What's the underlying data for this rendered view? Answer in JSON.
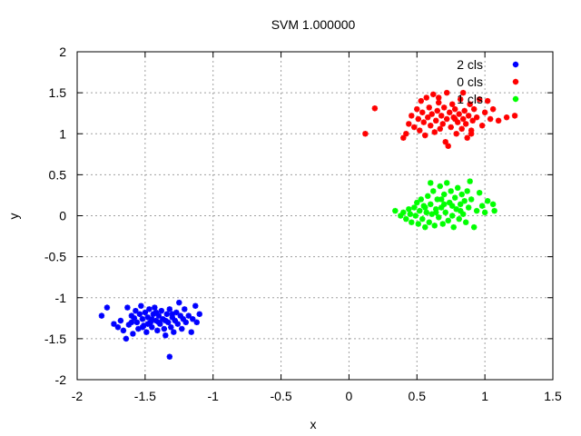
{
  "chart_data": {
    "type": "scatter",
    "title": "SVM 1.000000",
    "xlabel": "x",
    "ylabel": "y",
    "xlim": [
      -2,
      1.5
    ],
    "ylim": [
      -2,
      2
    ],
    "x_ticks": [
      "-2",
      "-1.5",
      "-1",
      "-0.5",
      "0",
      "0.5",
      "1",
      "1.5"
    ],
    "y_ticks": [
      "-2",
      "-1.5",
      "-1",
      "-0.5",
      "0",
      "0.5",
      "1",
      "1.5",
      "2"
    ],
    "grid": true,
    "legend_position": "top-right",
    "series": [
      {
        "name": "2 cls",
        "color": "#0000ff",
        "points": [
          [
            -1.82,
            -1.22
          ],
          [
            -1.78,
            -1.12
          ],
          [
            -1.73,
            -1.32
          ],
          [
            -1.7,
            -1.36
          ],
          [
            -1.68,
            -1.28
          ],
          [
            -1.66,
            -1.4
          ],
          [
            -1.64,
            -1.5
          ],
          [
            -1.63,
            -1.12
          ],
          [
            -1.62,
            -1.33
          ],
          [
            -1.6,
            -1.22
          ],
          [
            -1.59,
            -1.44
          ],
          [
            -1.58,
            -1.25
          ],
          [
            -1.57,
            -1.16
          ],
          [
            -1.56,
            -1.3
          ],
          [
            -1.55,
            -1.38
          ],
          [
            -1.54,
            -1.2
          ],
          [
            -1.53,
            -1.1
          ],
          [
            -1.52,
            -1.26
          ],
          [
            -1.51,
            -1.34
          ],
          [
            -1.5,
            -1.18
          ],
          [
            -1.49,
            -1.42
          ],
          [
            -1.48,
            -1.24
          ],
          [
            -1.47,
            -1.14
          ],
          [
            -1.46,
            -1.3
          ],
          [
            -1.45,
            -1.36
          ],
          [
            -1.44,
            -1.2
          ],
          [
            -1.43,
            -1.12
          ],
          [
            -1.42,
            -1.28
          ],
          [
            -1.41,
            -1.4
          ],
          [
            -1.4,
            -1.22
          ],
          [
            -1.39,
            -1.32
          ],
          [
            -1.38,
            -1.16
          ],
          [
            -1.37,
            -1.26
          ],
          [
            -1.36,
            -1.38
          ],
          [
            -1.35,
            -1.46
          ],
          [
            -1.34,
            -1.2
          ],
          [
            -1.33,
            -1.3
          ],
          [
            -1.32,
            -1.14
          ],
          [
            -1.31,
            -1.36
          ],
          [
            -1.3,
            -1.24
          ],
          [
            -1.29,
            -1.42
          ],
          [
            -1.28,
            -1.28
          ],
          [
            -1.27,
            -1.18
          ],
          [
            -1.26,
            -1.32
          ],
          [
            -1.25,
            -1.06
          ],
          [
            -1.24,
            -1.22
          ],
          [
            -1.23,
            -1.38
          ],
          [
            -1.22,
            -1.26
          ],
          [
            -1.21,
            -1.14
          ],
          [
            -1.2,
            -1.3
          ],
          [
            -1.18,
            -1.22
          ],
          [
            -1.16,
            -1.42
          ],
          [
            -1.15,
            -1.26
          ],
          [
            -1.13,
            -1.1
          ],
          [
            -1.12,
            -1.3
          ],
          [
            -1.1,
            -1.2
          ],
          [
            -1.32,
            -1.72
          ],
          [
            -1.45,
            -1.26
          ],
          [
            -1.52,
            -1.36
          ],
          [
            -1.4,
            -1.3
          ],
          [
            -1.6,
            -1.3
          ],
          [
            -1.48,
            -1.32
          ],
          [
            -1.35,
            -1.28
          ],
          [
            -1.42,
            -1.18
          ],
          [
            -1.3,
            -1.2
          ]
        ]
      },
      {
        "name": "0 cls",
        "color": "#ff0000",
        "points": [
          [
            0.12,
            1.0
          ],
          [
            0.19,
            1.31
          ],
          [
            0.4,
            0.95
          ],
          [
            0.42,
            1.0
          ],
          [
            0.44,
            1.12
          ],
          [
            0.46,
            1.22
          ],
          [
            0.48,
            1.08
          ],
          [
            0.5,
            1.3
          ],
          [
            0.51,
            1.18
          ],
          [
            0.52,
            1.04
          ],
          [
            0.53,
            1.4
          ],
          [
            0.54,
            1.26
          ],
          [
            0.55,
            1.14
          ],
          [
            0.56,
            0.98
          ],
          [
            0.57,
            1.44
          ],
          [
            0.58,
            1.2
          ],
          [
            0.59,
            1.32
          ],
          [
            0.6,
            1.1
          ],
          [
            0.61,
            1.24
          ],
          [
            0.62,
            1.48
          ],
          [
            0.63,
            1.02
          ],
          [
            0.64,
            1.16
          ],
          [
            0.65,
            1.28
          ],
          [
            0.66,
            1.38
          ],
          [
            0.67,
            1.06
          ],
          [
            0.68,
            1.22
          ],
          [
            0.69,
            1.12
          ],
          [
            0.7,
            1.32
          ],
          [
            0.71,
            0.9
          ],
          [
            0.72,
            1.18
          ],
          [
            0.73,
            0.85
          ],
          [
            0.74,
            1.26
          ],
          [
            0.75,
            1.08
          ],
          [
            0.76,
            1.36
          ],
          [
            0.77,
            1.2
          ],
          [
            0.78,
            1.3
          ],
          [
            0.79,
            1.0
          ],
          [
            0.8,
            1.14
          ],
          [
            0.81,
            1.24
          ],
          [
            0.82,
            1.42
          ],
          [
            0.83,
            1.06
          ],
          [
            0.84,
            1.18
          ],
          [
            0.85,
            1.28
          ],
          [
            0.86,
            1.12
          ],
          [
            0.87,
            0.95
          ],
          [
            0.88,
            1.22
          ],
          [
            0.89,
            1.36
          ],
          [
            0.9,
            1.04
          ],
          [
            0.91,
            1.16
          ],
          [
            0.92,
            1.3
          ],
          [
            0.94,
            1.2
          ],
          [
            0.96,
            1.42
          ],
          [
            0.98,
            1.1
          ],
          [
            1.0,
            1.26
          ],
          [
            1.02,
            1.4
          ],
          [
            1.04,
            1.18
          ],
          [
            1.06,
            1.3
          ],
          [
            1.1,
            1.16
          ],
          [
            1.16,
            1.2
          ],
          [
            1.22,
            1.22
          ],
          [
            0.66,
            1.44
          ],
          [
            0.72,
            1.5
          ],
          [
            0.84,
            1.5
          ],
          [
            0.9,
            1.0
          ],
          [
            0.78,
            1.18
          ]
        ]
      },
      {
        "name": "1 cls",
        "color": "#00ff00",
        "points": [
          [
            0.34,
            0.06
          ],
          [
            0.38,
            0.0
          ],
          [
            0.4,
            0.04
          ],
          [
            0.42,
            -0.04
          ],
          [
            0.44,
            0.08
          ],
          [
            0.45,
            0.02
          ],
          [
            0.46,
            -0.08
          ],
          [
            0.48,
            0.1
          ],
          [
            0.49,
            0.0
          ],
          [
            0.5,
            0.16
          ],
          [
            0.51,
            -0.1
          ],
          [
            0.52,
            0.06
          ],
          [
            0.53,
            0.2
          ],
          [
            0.54,
            -0.04
          ],
          [
            0.55,
            0.12
          ],
          [
            0.56,
            -0.14
          ],
          [
            0.57,
            0.04
          ],
          [
            0.58,
            0.24
          ],
          [
            0.59,
            -0.08
          ],
          [
            0.6,
            0.14
          ],
          [
            0.61,
            0.02
          ],
          [
            0.62,
            0.3
          ],
          [
            0.63,
            -0.12
          ],
          [
            0.64,
            0.08
          ],
          [
            0.65,
            0.2
          ],
          [
            0.66,
            -0.02
          ],
          [
            0.67,
            0.36
          ],
          [
            0.68,
            0.1
          ],
          [
            0.69,
            -0.1
          ],
          [
            0.7,
            0.26
          ],
          [
            0.71,
            0.04
          ],
          [
            0.72,
            0.4
          ],
          [
            0.73,
            -0.06
          ],
          [
            0.74,
            0.16
          ],
          [
            0.75,
            0.3
          ],
          [
            0.76,
            0.0
          ],
          [
            0.77,
            -0.14
          ],
          [
            0.78,
            0.22
          ],
          [
            0.79,
            0.08
          ],
          [
            0.8,
            0.34
          ],
          [
            0.81,
            -0.04
          ],
          [
            0.82,
            0.14
          ],
          [
            0.83,
            0.26
          ],
          [
            0.84,
            0.02
          ],
          [
            0.85,
            0.18
          ],
          [
            0.86,
            -0.08
          ],
          [
            0.87,
            0.3
          ],
          [
            0.88,
            0.1
          ],
          [
            0.89,
            0.42
          ],
          [
            0.9,
            0.2
          ],
          [
            0.92,
            -0.14
          ],
          [
            0.94,
            0.06
          ],
          [
            0.96,
            0.28
          ],
          [
            0.98,
            0.12
          ],
          [
            1.0,
            0.04
          ],
          [
            1.02,
            0.18
          ],
          [
            1.06,
            0.14
          ],
          [
            1.07,
            0.06
          ],
          [
            0.6,
            0.4
          ],
          [
            0.7,
            0.14
          ],
          [
            0.64,
            0.04
          ],
          [
            0.76,
            0.12
          ],
          [
            0.56,
            0.1
          ],
          [
            0.82,
            0.06
          ],
          [
            0.68,
            0.2
          ]
        ]
      }
    ]
  }
}
